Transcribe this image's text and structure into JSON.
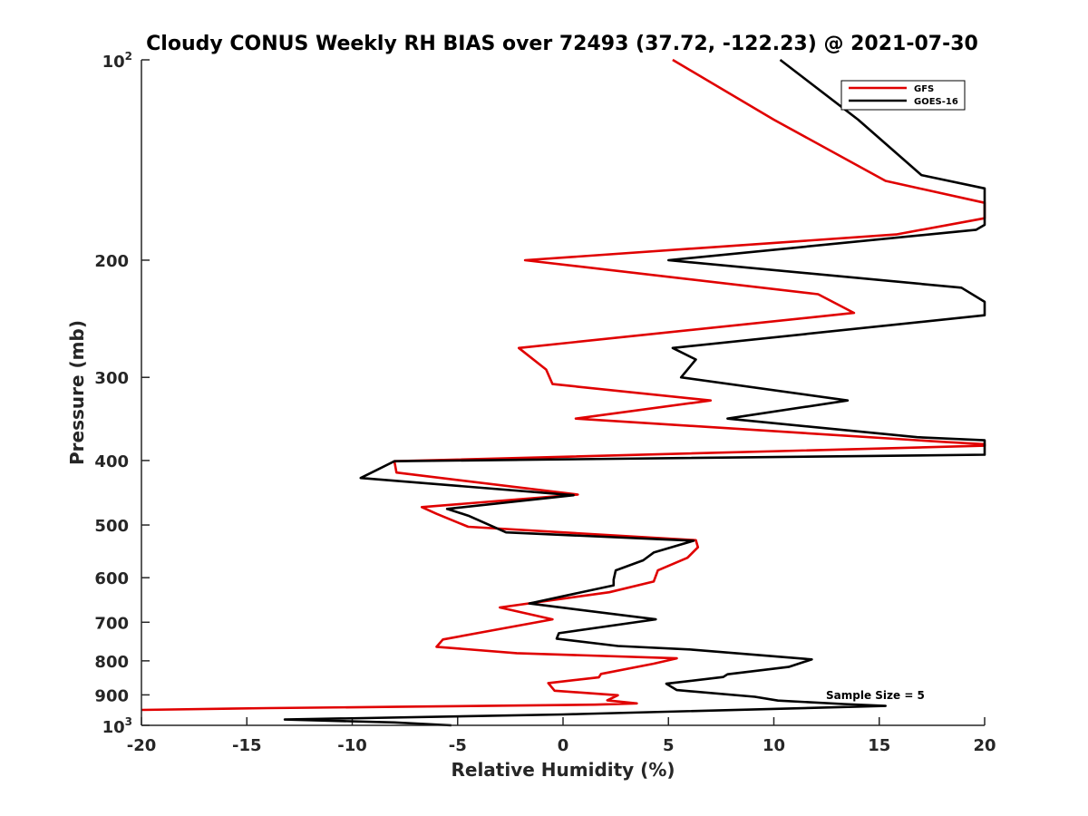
{
  "chart_data": {
    "type": "line",
    "title": "Cloudy CONUS Weekly RH BIAS over 72493 (37.72, -122.23) @ 2021-07-30",
    "xlabel": "Relative Humidity (%)",
    "ylabel": "Pressure (mb)",
    "xlim": [
      -20,
      20
    ],
    "ylim": [
      100,
      1000
    ],
    "yscale": "log",
    "y_reversed": true,
    "grid": false,
    "legend_position": "top-right",
    "xticks": [
      -20,
      -15,
      -10,
      -5,
      0,
      5,
      10,
      15,
      20
    ],
    "xtick_labels": [
      "-20",
      "-15",
      "-10",
      "-5",
      "0",
      "5",
      "10",
      "15",
      "20"
    ],
    "yticks": [
      {
        "value": 100,
        "base": "10",
        "exp": "2"
      },
      {
        "value": 200,
        "label": "200"
      },
      {
        "value": 300,
        "label": "300"
      },
      {
        "value": 400,
        "label": "400"
      },
      {
        "value": 500,
        "label": "500"
      },
      {
        "value": 600,
        "label": "600"
      },
      {
        "value": 700,
        "label": "700"
      },
      {
        "value": 800,
        "label": "800"
      },
      {
        "value": 900,
        "label": "900"
      },
      {
        "value": 1000,
        "base": "10",
        "exp": "3"
      }
    ],
    "annotation": "Sample Size = 5",
    "series": [
      {
        "name": "GFS",
        "color": "#e00000",
        "points": [
          [
            5.2,
            100
          ],
          [
            10.0,
            123
          ],
          [
            15.3,
            152
          ],
          [
            20.0,
            164
          ],
          [
            20.0,
            170
          ],
          [
            20.0,
            173
          ],
          [
            15.8,
            183
          ],
          [
            -1.8,
            200
          ],
          [
            12.1,
            225
          ],
          [
            13.8,
            240
          ],
          [
            -2.1,
            271
          ],
          [
            -0.8,
            292
          ],
          [
            -0.5,
            307
          ],
          [
            7.0,
            325
          ],
          [
            0.6,
            346
          ],
          [
            18.0,
            375
          ],
          [
            20.0,
            378
          ],
          [
            20.0,
            380
          ],
          [
            -8.0,
            401
          ],
          [
            -7.9,
            417
          ],
          [
            0.7,
            450
          ],
          [
            -6.7,
            470
          ],
          [
            -6.0,
            481
          ],
          [
            -4.5,
            503
          ],
          [
            6.3,
            527
          ],
          [
            6.4,
            540
          ],
          [
            5.9,
            560
          ],
          [
            4.5,
            585
          ],
          [
            4.3,
            608
          ],
          [
            2.2,
            631
          ],
          [
            -3.0,
            665
          ],
          [
            -0.5,
            693
          ],
          [
            -5.7,
            743
          ],
          [
            -6.0,
            762
          ],
          [
            -2.2,
            779
          ],
          [
            5.4,
            793
          ],
          [
            4.3,
            808
          ],
          [
            1.8,
            837
          ],
          [
            1.7,
            847
          ],
          [
            -0.7,
            864
          ],
          [
            -0.4,
            887
          ],
          [
            2.6,
            901
          ],
          [
            2.1,
            917
          ],
          [
            3.5,
            927
          ],
          [
            1.5,
            931
          ],
          [
            -8.0,
            938
          ],
          [
            -14.0,
            942
          ],
          [
            -20.0,
            948
          ]
        ]
      },
      {
        "name": "GOES-16",
        "color": "#000000",
        "points": [
          [
            10.3,
            100
          ],
          [
            14.0,
            123
          ],
          [
            17.0,
            149
          ],
          [
            20.0,
            156
          ],
          [
            20.0,
            170
          ],
          [
            20.0,
            177
          ],
          [
            19.6,
            180
          ],
          [
            5.0,
            200
          ],
          [
            18.9,
            220
          ],
          [
            20.0,
            231
          ],
          [
            20.0,
            242
          ],
          [
            5.2,
            271
          ],
          [
            6.3,
            282
          ],
          [
            5.6,
            300
          ],
          [
            13.5,
            325
          ],
          [
            7.8,
            346
          ],
          [
            16.8,
            369
          ],
          [
            20.0,
            373
          ],
          [
            20.0,
            392
          ],
          [
            -8.0,
            401
          ],
          [
            -9.6,
            425
          ],
          [
            0.5,
            451
          ],
          [
            -5.5,
            473
          ],
          [
            -4.5,
            484
          ],
          [
            -2.7,
            513
          ],
          [
            6.2,
            528
          ],
          [
            4.3,
            550
          ],
          [
            3.8,
            565
          ],
          [
            2.5,
            585
          ],
          [
            2.4,
            604
          ],
          [
            2.4,
            616
          ],
          [
            -1.6,
            656
          ],
          [
            4.4,
            693
          ],
          [
            -0.2,
            727
          ],
          [
            -0.3,
            741
          ],
          [
            2.6,
            760
          ],
          [
            6.0,
            769
          ],
          [
            11.8,
            796
          ],
          [
            10.7,
            817
          ],
          [
            7.8,
            838
          ],
          [
            7.6,
            846
          ],
          [
            4.9,
            866
          ],
          [
            5.4,
            885
          ],
          [
            9.1,
            906
          ],
          [
            10.2,
            918
          ],
          [
            13.3,
            929
          ],
          [
            15.3,
            935
          ],
          [
            0.0,
            963
          ],
          [
            -13.2,
            980
          ],
          [
            -8.0,
            990
          ],
          [
            -5.3,
            1000
          ]
        ]
      }
    ]
  }
}
